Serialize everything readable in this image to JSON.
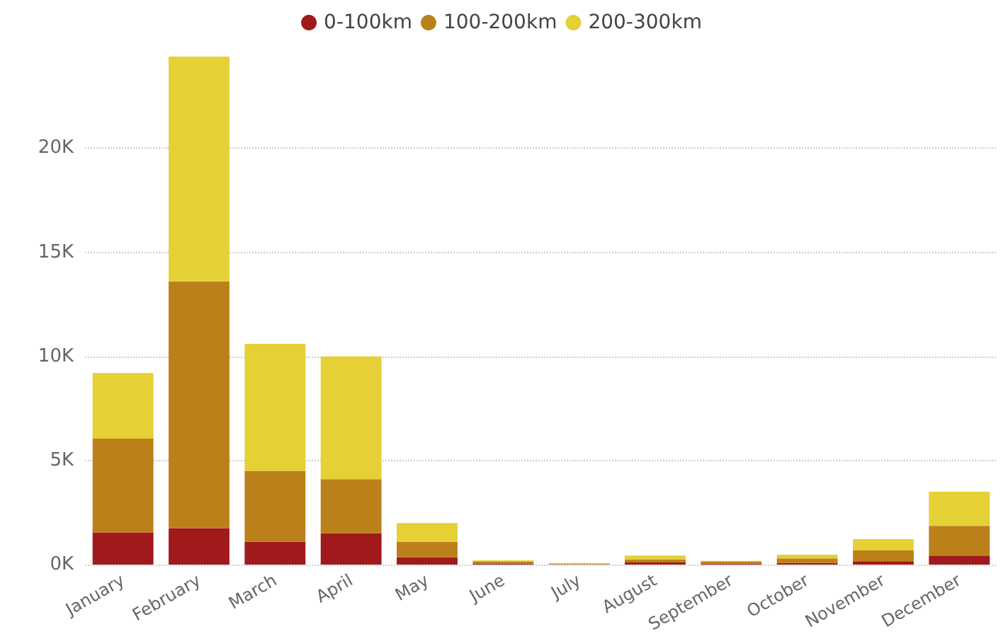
{
  "chart_data": {
    "type": "bar",
    "stacked": true,
    "categories": [
      "January",
      "February",
      "March",
      "April",
      "May",
      "June",
      "July",
      "August",
      "September",
      "October",
      "November",
      "December"
    ],
    "series": [
      {
        "name": "0-100km",
        "color": "#a0191b",
        "values": [
          1550,
          1750,
          1100,
          1500,
          350,
          50,
          20,
          100,
          40,
          80,
          160,
          430
        ]
      },
      {
        "name": "100-200km",
        "color": "#bb801a",
        "values": [
          4500,
          11850,
          3400,
          2600,
          750,
          100,
          30,
          150,
          100,
          220,
          520,
          1430
        ]
      },
      {
        "name": "200-300km",
        "color": "#e5d036",
        "values": [
          3150,
          10800,
          6100,
          5900,
          900,
          50,
          30,
          180,
          40,
          180,
          540,
          1640
        ]
      }
    ],
    "yticks": [
      {
        "value": 0,
        "label": "0K"
      },
      {
        "value": 5000,
        "label": "5K"
      },
      {
        "value": 10000,
        "label": "10K"
      },
      {
        "value": 15000,
        "label": "15K"
      },
      {
        "value": 20000,
        "label": "20K"
      }
    ],
    "ylim": [
      0,
      24400
    ],
    "grid": "y",
    "legend": "top"
  }
}
